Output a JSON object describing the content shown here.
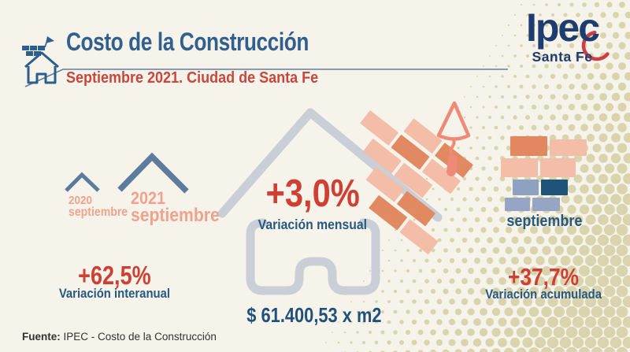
{
  "header": {
    "title": "Costo de la Construcción",
    "subtitle": "Septiembre 2021. Ciudad de Santa Fe"
  },
  "logo": {
    "name": "Ipec",
    "region": "Santa Fe"
  },
  "interannual": {
    "prev_year": "2020",
    "prev_month": "septiembre",
    "curr_year": "2021",
    "curr_month": "septiembre",
    "value": "+62,5%",
    "label": "Variación interanual"
  },
  "monthly": {
    "value": "+3,0%",
    "label": "Variación mensual",
    "price_per_m2": "$ 61.400,53 x m2"
  },
  "accumulated": {
    "month": "septiembre",
    "value": "+37,7%",
    "label": "Variación acumulada"
  },
  "footer": {
    "source_label": "Fuente:",
    "source_text": "IPEC - Costo de la Construcción"
  },
  "colors": {
    "background": "#f6f3ea",
    "title_blue": "#31608e",
    "accent_red": "#cd4033",
    "subtitle_red": "#c7473d",
    "caption_blue": "#27597f",
    "salmon_text": "#efa38e",
    "roof_slate": "#5d7c9d",
    "house_gray": "#c9ced7",
    "brick_light": "#f3bda8",
    "brick_dark": "#e18a62",
    "stack_slate": "#96a5c3",
    "stack_navy": "#1f5478",
    "logo_navy": "#1d3c6f",
    "logo_red": "#c93f45",
    "halftone_dot": "#d9d4ae"
  }
}
